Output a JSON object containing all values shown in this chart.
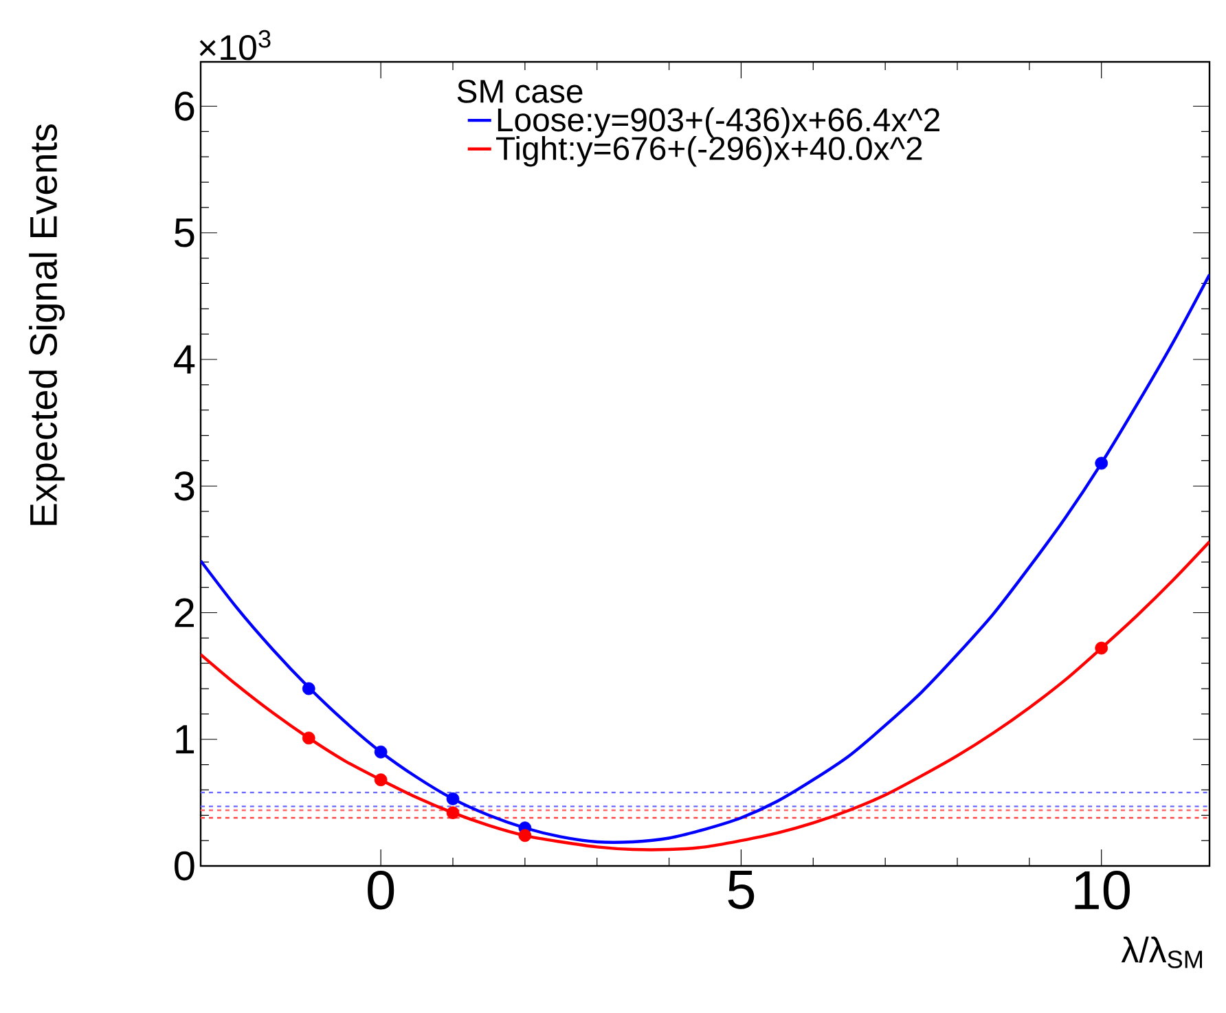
{
  "chart_data": {
    "type": "line",
    "legend_title": "SM case",
    "xlabel": "λ/λ$_{SM}$",
    "ylabel": "Expected Signal Events",
    "annotations": [
      "×10$^{3}$"
    ],
    "xlim": [
      -2.5,
      11.5
    ],
    "ylim": [
      0,
      6.35
    ],
    "xticks": [
      0,
      5,
      10
    ],
    "yticks": [
      0,
      1,
      2,
      3,
      4,
      5,
      6
    ],
    "grid": false,
    "legend": "top",
    "series": [
      {
        "name": "Loose:y=903+(-436)x+66.4x^2",
        "color": "#0000ff",
        "marker": "none",
        "x": [
          -2.5,
          -2,
          -1.5,
          -1,
          -0.5,
          0,
          0.5,
          1,
          1.5,
          2,
          2.5,
          3,
          3.5,
          4,
          4.5,
          5,
          5.5,
          6,
          6.5,
          7,
          7.5,
          8,
          8.5,
          9,
          9.5,
          10,
          10.5,
          11,
          11.5
        ],
        "values": [
          2.41,
          2.04,
          1.71,
          1.41,
          1.14,
          0.9,
          0.7,
          0.53,
          0.4,
          0.3,
          0.23,
          0.19,
          0.19,
          0.22,
          0.29,
          0.38,
          0.51,
          0.68,
          0.87,
          1.11,
          1.37,
          1.67,
          1.99,
          2.36,
          2.75,
          3.18,
          3.65,
          4.14,
          4.67
        ]
      },
      {
        "name": "Tight:y=676+(-296)x+40.0x^2",
        "color": "#ff0000",
        "marker": "none",
        "x": [
          -2.5,
          -2,
          -1.5,
          -1,
          -0.5,
          0,
          0.5,
          1,
          1.5,
          2,
          2.5,
          3,
          3.5,
          4,
          4.5,
          5,
          5.5,
          6,
          6.5,
          7,
          7.5,
          8,
          8.5,
          9,
          9.5,
          10,
          10.5,
          11,
          11.5
        ],
        "values": [
          1.67,
          1.43,
          1.21,
          1.01,
          0.83,
          0.68,
          0.54,
          0.42,
          0.32,
          0.24,
          0.19,
          0.15,
          0.13,
          0.13,
          0.15,
          0.2,
          0.26,
          0.34,
          0.44,
          0.56,
          0.71,
          0.87,
          1.05,
          1.25,
          1.47,
          1.72,
          1.98,
          2.26,
          2.56
        ]
      },
      {
        "type": "scatter",
        "color": "#0000ff",
        "marker": "circle",
        "x": [
          -1,
          0,
          1,
          2,
          10
        ],
        "values": [
          1.4,
          0.9,
          0.53,
          0.3,
          3.18
        ]
      },
      {
        "type": "scatter",
        "color": "#ff0000",
        "marker": "circle",
        "x": [
          -1,
          0,
          1,
          2,
          10
        ],
        "values": [
          1.01,
          0.68,
          0.42,
          0.24,
          1.72
        ]
      }
    ],
    "ref_lines": [
      {
        "axis": "y",
        "value": 0.58,
        "color": "#6666ff",
        "line_style": "dashed"
      },
      {
        "axis": "y",
        "value": 0.47,
        "color": "#6666ff",
        "line_style": "dashed"
      },
      {
        "axis": "y",
        "value": 0.44,
        "color": "#ff6666",
        "line_style": "dashed"
      },
      {
        "axis": "y",
        "value": 0.38,
        "color": "#ff4444",
        "line_style": "dashed"
      }
    ]
  }
}
